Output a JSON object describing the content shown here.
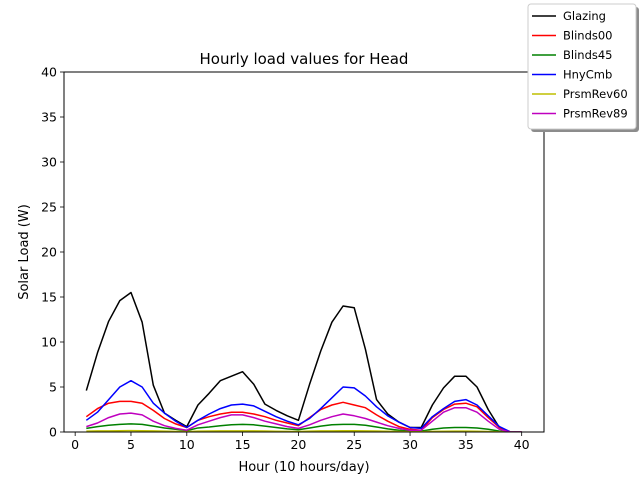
{
  "chart_data": {
    "type": "line",
    "title": "Hourly load values for Head",
    "xlabel": "Hour (10 hours/day)",
    "ylabel": "Solar Load (W)",
    "xlim": [
      -1,
      42
    ],
    "ylim": [
      0,
      40
    ],
    "xticks": [
      0,
      5,
      10,
      15,
      20,
      25,
      30,
      35,
      40
    ],
    "yticks": [
      0,
      5,
      10,
      15,
      20,
      25,
      30,
      35,
      40
    ],
    "grid": false,
    "legend_position": "top-right, outside plot",
    "x": [
      1,
      2,
      3,
      4,
      5,
      6,
      7,
      8,
      9,
      10,
      11,
      12,
      13,
      14,
      15,
      16,
      17,
      18,
      19,
      20,
      21,
      22,
      23,
      24,
      25,
      26,
      27,
      28,
      29,
      30,
      31,
      32,
      33,
      34,
      35,
      36,
      37,
      38,
      39,
      40
    ],
    "series": [
      {
        "name": "Glazing",
        "color": "#000000",
        "values": [
          4.6,
          8.8,
          12.3,
          14.6,
          15.5,
          12.2,
          5.2,
          2.1,
          1.3,
          0.6,
          3.0,
          4.3,
          5.7,
          6.2,
          6.7,
          5.3,
          3.1,
          2.4,
          1.8,
          1.3,
          5.3,
          9.0,
          12.2,
          14.0,
          13.8,
          9.2,
          3.6,
          2.0,
          1.1,
          0.5,
          0.5,
          3.0,
          4.9,
          6.2,
          6.2,
          5.0,
          2.5,
          0.5,
          0.0,
          0.0
        ]
      },
      {
        "name": "Blinds00",
        "color": "#ff0000",
        "values": [
          1.7,
          2.6,
          3.2,
          3.4,
          3.4,
          3.2,
          2.4,
          1.5,
          0.9,
          0.5,
          1.3,
          1.7,
          2.0,
          2.2,
          2.2,
          2.0,
          1.7,
          1.3,
          1.0,
          0.7,
          1.6,
          2.5,
          3.0,
          3.3,
          3.0,
          2.7,
          1.9,
          1.2,
          0.6,
          0.3,
          0.2,
          1.6,
          2.5,
          3.1,
          3.2,
          2.8,
          1.6,
          0.5,
          0.0,
          0.0
        ]
      },
      {
        "name": "Blinds45",
        "color": "#008000",
        "values": [
          0.4,
          0.6,
          0.75,
          0.85,
          0.9,
          0.85,
          0.65,
          0.45,
          0.3,
          0.15,
          0.45,
          0.55,
          0.7,
          0.8,
          0.85,
          0.8,
          0.65,
          0.5,
          0.35,
          0.25,
          0.45,
          0.65,
          0.8,
          0.85,
          0.85,
          0.75,
          0.55,
          0.35,
          0.2,
          0.1,
          0.1,
          0.3,
          0.45,
          0.5,
          0.5,
          0.45,
          0.3,
          0.1,
          0.0,
          0.0
        ]
      },
      {
        "name": "HnyCmb",
        "color": "#0000ff",
        "values": [
          1.3,
          2.2,
          3.6,
          5.0,
          5.7,
          5.0,
          3.2,
          2.1,
          1.2,
          0.5,
          1.3,
          2.0,
          2.6,
          3.0,
          3.1,
          2.9,
          2.3,
          1.7,
          1.2,
          0.8,
          1.5,
          2.6,
          3.8,
          5.0,
          4.9,
          4.0,
          2.8,
          1.8,
          1.1,
          0.5,
          0.4,
          1.7,
          2.6,
          3.4,
          3.6,
          3.0,
          1.8,
          0.6,
          0.0,
          0.0
        ]
      },
      {
        "name": "PrsmRev60",
        "color": "#bfbf00",
        "values": [
          0.1,
          0.12,
          0.13,
          0.14,
          0.15,
          0.14,
          0.12,
          0.1,
          0.07,
          0.04,
          0.1,
          0.11,
          0.12,
          0.13,
          0.13,
          0.12,
          0.11,
          0.09,
          0.07,
          0.05,
          0.1,
          0.12,
          0.13,
          0.14,
          0.14,
          0.13,
          0.11,
          0.08,
          0.05,
          0.03,
          0.03,
          0.07,
          0.09,
          0.1,
          0.1,
          0.09,
          0.06,
          0.02,
          0.0,
          0.0
        ]
      },
      {
        "name": "PrsmRev89",
        "color": "#bf00bf",
        "values": [
          0.6,
          1.0,
          1.6,
          2.0,
          2.1,
          1.9,
          1.2,
          0.7,
          0.4,
          0.2,
          0.8,
          1.2,
          1.6,
          1.9,
          1.9,
          1.6,
          1.2,
          0.9,
          0.6,
          0.4,
          0.8,
          1.3,
          1.7,
          2.0,
          1.8,
          1.5,
          1.1,
          0.7,
          0.4,
          0.2,
          0.2,
          1.2,
          2.2,
          2.7,
          2.7,
          2.2,
          1.2,
          0.3,
          0.0,
          0.0
        ]
      }
    ]
  }
}
